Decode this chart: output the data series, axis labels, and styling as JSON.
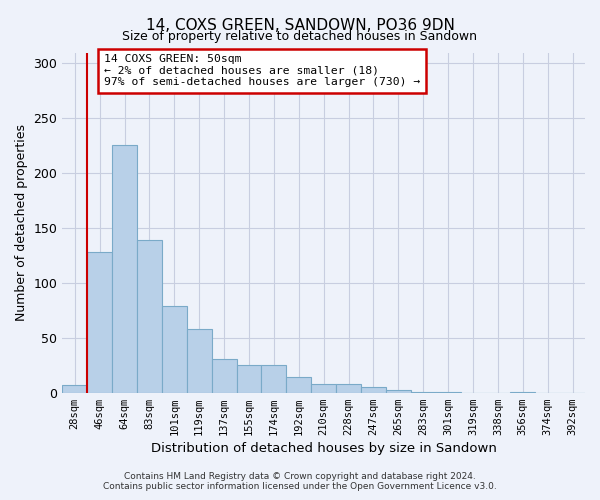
{
  "title": "14, COXS GREEN, SANDOWN, PO36 9DN",
  "subtitle": "Size of property relative to detached houses in Sandown",
  "xlabel": "Distribution of detached houses by size in Sandown",
  "ylabel": "Number of detached properties",
  "bar_labels": [
    "28sqm",
    "46sqm",
    "64sqm",
    "83sqm",
    "101sqm",
    "119sqm",
    "137sqm",
    "155sqm",
    "174sqm",
    "192sqm",
    "210sqm",
    "228sqm",
    "247sqm",
    "265sqm",
    "283sqm",
    "301sqm",
    "319sqm",
    "338sqm",
    "356sqm",
    "374sqm",
    "392sqm"
  ],
  "bar_values": [
    7,
    128,
    226,
    139,
    79,
    58,
    31,
    25,
    25,
    14,
    8,
    8,
    5,
    2,
    1,
    1,
    0,
    0,
    1,
    0,
    0
  ],
  "bar_color": "#b8d0e8",
  "bar_edge_color": "#7aaac8",
  "ylim": [
    0,
    310
  ],
  "yticks": [
    0,
    50,
    100,
    150,
    200,
    250,
    300
  ],
  "marker_line_color": "#cc0000",
  "annotation_title": "14 COXS GREEN: 50sqm",
  "annotation_line1": "← 2% of detached houses are smaller (18)",
  "annotation_line2": "97% of semi-detached houses are larger (730) →",
  "annotation_box_color": "#cc0000",
  "footer_line1": "Contains HM Land Registry data © Crown copyright and database right 2024.",
  "footer_line2": "Contains public sector information licensed under the Open Government Licence v3.0.",
  "background_color": "#eef2fa",
  "plot_bg_color": "#eef2fa",
  "grid_color": "#c8cee0"
}
